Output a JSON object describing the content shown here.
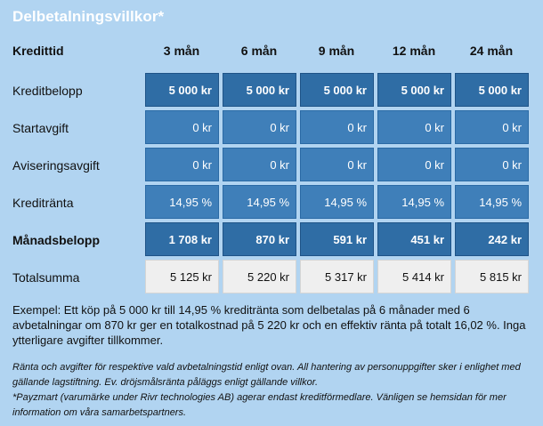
{
  "title": "Delbetalningsvillkor*",
  "header": {
    "label": "Kredittid",
    "columns": [
      "3 mån",
      "6 mån",
      "9 mån",
      "12 mån",
      "24 mån"
    ]
  },
  "rows": [
    {
      "label": "Kreditbelopp",
      "values": [
        "5 000 kr",
        "5 000 kr",
        "5 000 kr",
        "5 000 kr",
        "5 000 kr"
      ]
    },
    {
      "label": "Startavgift",
      "values": [
        "0 kr",
        "0 kr",
        "0 kr",
        "0 kr",
        "0 kr"
      ]
    },
    {
      "label": "Aviseringsavgift",
      "values": [
        "0 kr",
        "0 kr",
        "0 kr",
        "0 kr",
        "0 kr"
      ]
    },
    {
      "label": "Kreditränta",
      "values": [
        "14,95 %",
        "14,95 %",
        "14,95 %",
        "14,95 %",
        "14,95 %"
      ]
    },
    {
      "label": "Månadsbelopp",
      "values": [
        "1 708 kr",
        "870 kr",
        "591 kr",
        "451 kr",
        "242 kr"
      ]
    },
    {
      "label": "Totalsumma",
      "values": [
        "5 125 kr",
        "5 220 kr",
        "5 317 kr",
        "5 414 kr",
        "5 815 kr"
      ]
    }
  ],
  "example": "Exempel: Ett köp på 5 000 kr till 14,95 % kreditränta som delbetalas på 6 månader med 6 avbetalningar om 870 kr ger en totalkostnad på 5 220 kr och en effektiv ränta på totalt 16,02 %. Inga ytterligare avgifter tillkommer.",
  "footnote_1": "Ränta och avgifter för respektive vald avbetalningstid enligt ovan. All hantering av personuppgifter sker i enlighet med gällande lagstiftning. Ev. dröjsmålsränta påläggs enligt gällande villkor.",
  "footnote_2": "*Payzmart (varumärke under Rivr technologies AB) agerar endast kreditförmedlare. Vänligen se hemsidan för mer information om våra samarbetspartners.",
  "colors": {
    "background": "#b1d4f1",
    "cell_dark": "#2f6da5",
    "cell_mid": "#3f7fb9",
    "cell_light": "#efefef"
  }
}
